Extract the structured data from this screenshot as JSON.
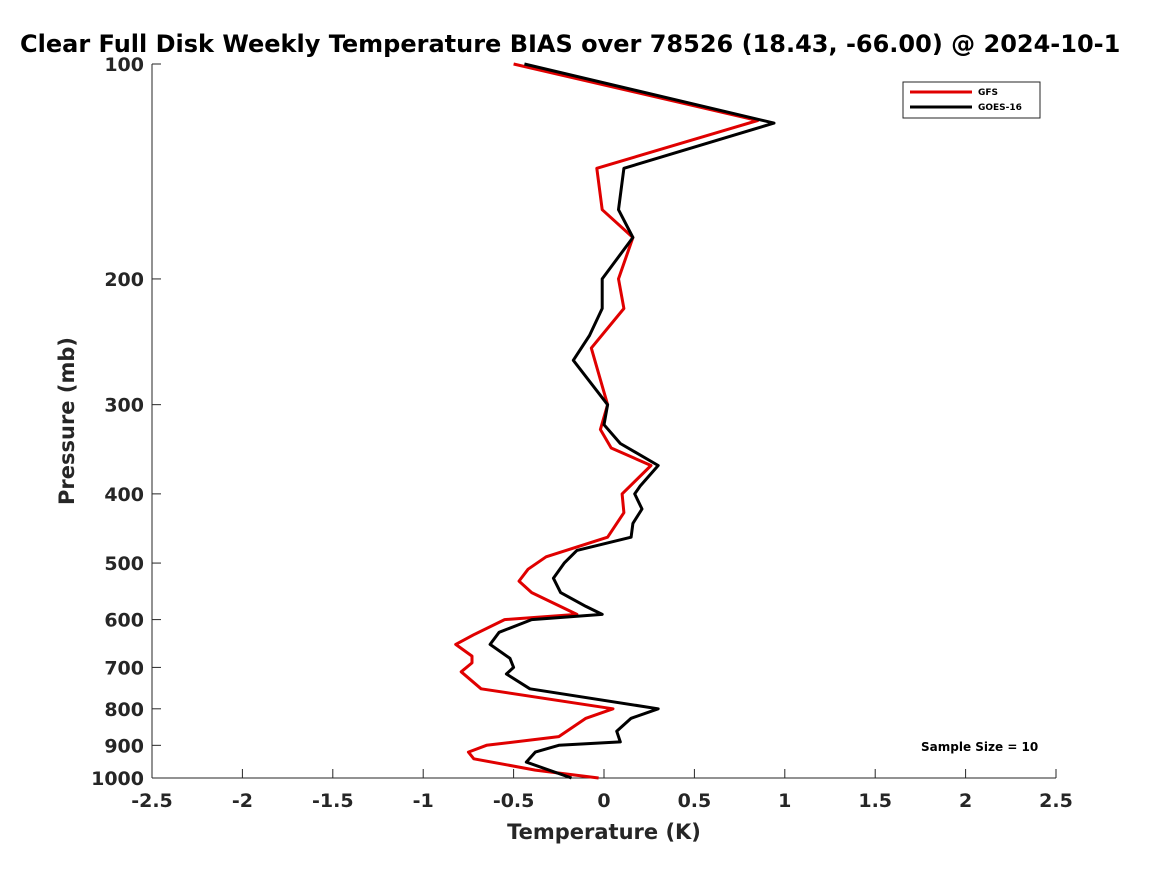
{
  "chart_data": {
    "type": "line",
    "title": "Clear Full Disk Weekly Temperature BIAS over 78526 (18.43, -66.00) @ 2024-10-1",
    "xlabel": "Temperature (K)",
    "ylabel": "Pressure (mb)",
    "xlim": [
      -2.5,
      2.5
    ],
    "ylim": [
      100,
      1000
    ],
    "yscale": "log",
    "y_reversed": true,
    "grid": false,
    "legend_position": "top-right",
    "xticks": [
      -2.5,
      -2,
      -1.5,
      -1,
      -0.5,
      0,
      0.5,
      1,
      1.5,
      2,
      2.5
    ],
    "xtick_labels": [
      "-2.5",
      "-2",
      "-1.5",
      "-1",
      "-0.5",
      "0",
      "0.5",
      "1",
      "1.5",
      "2",
      "2.5"
    ],
    "yticks": [
      100,
      200,
      300,
      400,
      500,
      600,
      700,
      800,
      900,
      1000
    ],
    "ytick_labels": [
      "100",
      "200",
      "300",
      "400",
      "500",
      "600",
      "700",
      "800",
      "900",
      "1000"
    ],
    "annotation": "Sample Size = 10",
    "series": [
      {
        "name": "GFS",
        "color": "#e00000",
        "points": [
          {
            "x": -0.5,
            "p": 100
          },
          {
            "x": 0.85,
            "p": 120
          },
          {
            "x": -0.04,
            "p": 140
          },
          {
            "x": -0.01,
            "p": 160
          },
          {
            "x": 0.16,
            "p": 175
          },
          {
            "x": 0.08,
            "p": 200
          },
          {
            "x": 0.11,
            "p": 220
          },
          {
            "x": -0.07,
            "p": 250
          },
          {
            "x": 0.02,
            "p": 300
          },
          {
            "x": -0.02,
            "p": 325
          },
          {
            "x": 0.04,
            "p": 345
          },
          {
            "x": 0.26,
            "p": 365
          },
          {
            "x": 0.1,
            "p": 400
          },
          {
            "x": 0.11,
            "p": 425
          },
          {
            "x": 0.02,
            "p": 460
          },
          {
            "x": -0.32,
            "p": 490
          },
          {
            "x": -0.42,
            "p": 510
          },
          {
            "x": -0.47,
            "p": 530
          },
          {
            "x": -0.4,
            "p": 550
          },
          {
            "x": -0.15,
            "p": 590
          },
          {
            "x": -0.55,
            "p": 600
          },
          {
            "x": -0.72,
            "p": 630
          },
          {
            "x": -0.82,
            "p": 650
          },
          {
            "x": -0.73,
            "p": 675
          },
          {
            "x": -0.73,
            "p": 690
          },
          {
            "x": -0.79,
            "p": 710
          },
          {
            "x": -0.68,
            "p": 750
          },
          {
            "x": 0.05,
            "p": 800
          },
          {
            "x": -0.1,
            "p": 825
          },
          {
            "x": -0.25,
            "p": 875
          },
          {
            "x": -0.65,
            "p": 900
          },
          {
            "x": -0.75,
            "p": 920
          },
          {
            "x": -0.72,
            "p": 940
          },
          {
            "x": -0.38,
            "p": 975
          },
          {
            "x": -0.03,
            "p": 1000
          }
        ]
      },
      {
        "name": "GOES-16",
        "color": "#000000",
        "points": [
          {
            "x": -0.44,
            "p": 100
          },
          {
            "x": 0.94,
            "p": 121
          },
          {
            "x": 0.11,
            "p": 140
          },
          {
            "x": 0.08,
            "p": 160
          },
          {
            "x": 0.16,
            "p": 175
          },
          {
            "x": -0.01,
            "p": 200
          },
          {
            "x": -0.01,
            "p": 220
          },
          {
            "x": -0.08,
            "p": 240
          },
          {
            "x": -0.17,
            "p": 260
          },
          {
            "x": 0.02,
            "p": 300
          },
          {
            "x": 0.0,
            "p": 320
          },
          {
            "x": 0.09,
            "p": 340
          },
          {
            "x": 0.3,
            "p": 365
          },
          {
            "x": 0.2,
            "p": 390
          },
          {
            "x": 0.17,
            "p": 400
          },
          {
            "x": 0.21,
            "p": 420
          },
          {
            "x": 0.16,
            "p": 440
          },
          {
            "x": 0.15,
            "p": 460
          },
          {
            "x": -0.15,
            "p": 480
          },
          {
            "x": -0.22,
            "p": 500
          },
          {
            "x": -0.28,
            "p": 525
          },
          {
            "x": -0.24,
            "p": 550
          },
          {
            "x": -0.1,
            "p": 575
          },
          {
            "x": -0.01,
            "p": 590
          },
          {
            "x": -0.4,
            "p": 600
          },
          {
            "x": -0.58,
            "p": 625
          },
          {
            "x": -0.63,
            "p": 650
          },
          {
            "x": -0.52,
            "p": 680
          },
          {
            "x": -0.5,
            "p": 700
          },
          {
            "x": -0.54,
            "p": 715
          },
          {
            "x": -0.41,
            "p": 750
          },
          {
            "x": 0.3,
            "p": 800
          },
          {
            "x": 0.15,
            "p": 825
          },
          {
            "x": 0.07,
            "p": 860
          },
          {
            "x": 0.09,
            "p": 890
          },
          {
            "x": -0.25,
            "p": 900
          },
          {
            "x": -0.38,
            "p": 920
          },
          {
            "x": -0.43,
            "p": 950
          },
          {
            "x": -0.18,
            "p": 1000
          }
        ]
      }
    ]
  }
}
